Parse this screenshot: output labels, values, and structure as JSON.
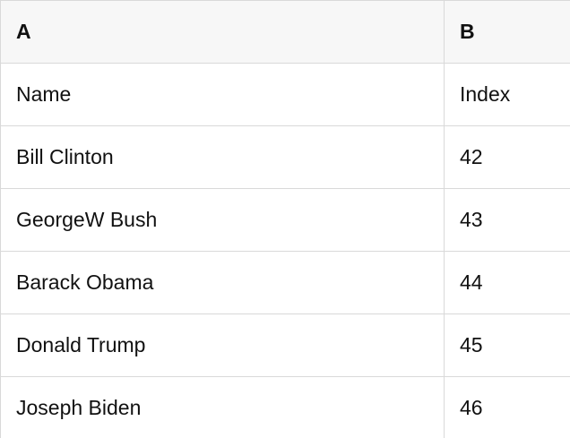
{
  "table": {
    "columns": [
      {
        "label": "A"
      },
      {
        "label": "B"
      }
    ],
    "rows": [
      [
        "Name",
        "Index"
      ],
      [
        "Bill Clinton",
        "42"
      ],
      [
        "GeorgeW Bush",
        "43"
      ],
      [
        "Barack Obama",
        "44"
      ],
      [
        "Donald Trump",
        "45"
      ],
      [
        "Joseph Biden",
        "46"
      ]
    ]
  },
  "colors": {
    "border": "#d9d9d9",
    "header_background": "#f7f7f7",
    "cell_background": "#ffffff",
    "text": "#111111"
  }
}
